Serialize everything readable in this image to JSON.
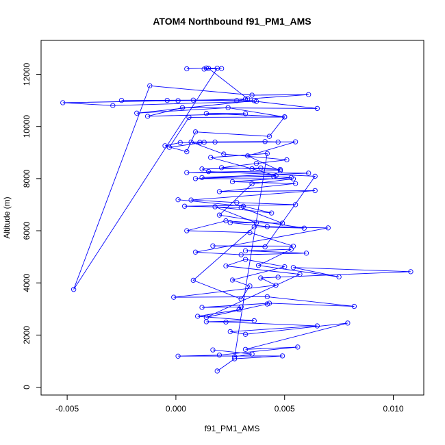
{
  "chart_data": {
    "type": "line",
    "title": "ATOM4 Northbound f91_PM1_AMS",
    "xlabel": "f91_PM1_AMS",
    "ylabel": "Altitude (m)",
    "xlim": [
      -0.0062,
      0.0114
    ],
    "ylim": [
      -300,
      13300
    ],
    "x_ticks": [
      -0.005,
      0.0,
      0.005,
      0.01
    ],
    "x_tick_labels": [
      "-0.005",
      "0.000",
      "0.005",
      "0.010"
    ],
    "y_ticks": [
      0,
      2000,
      4000,
      6000,
      8000,
      10000,
      12000
    ],
    "y_tick_labels": [
      "0",
      "2000",
      "4000",
      "6000",
      "8000",
      "10000",
      "12000"
    ],
    "series_color": "#0000ff",
    "series": [
      {
        "style": "both",
        "points": [
          [
            0.0019,
            620
          ],
          [
            0.0027,
            1090
          ],
          [
            0.0049,
            1200
          ],
          [
            0.0001,
            1190
          ],
          [
            0.002,
            1230
          ],
          [
            0.0056,
            1540
          ],
          [
            0.0032,
            1450
          ],
          [
            0.0079,
            2460
          ],
          [
            0.0032,
            2030
          ],
          [
            0.0025,
            2130
          ],
          [
            0.0065,
            2350
          ],
          [
            0.0023,
            2500
          ],
          [
            0.0014,
            2510
          ],
          [
            0.0036,
            2550
          ],
          [
            0.001,
            2720
          ],
          [
            0.0029,
            2970
          ],
          [
            0.003,
            3080
          ],
          [
            0.0012,
            3060
          ],
          [
            0.0043,
            3220
          ],
          [
            0.0082,
            3100
          ],
          [
            0.0042,
            3470
          ],
          [
            -0.0001,
            3450
          ],
          [
            0.0046,
            3910
          ],
          [
            0.0039,
            4190
          ],
          [
            0.0047,
            4220
          ],
          [
            0.0108,
            4430
          ],
          [
            0.0054,
            4590
          ],
          [
            0.0075,
            4230
          ],
          [
            0.0038,
            4670
          ],
          [
            0.0053,
            5290
          ],
          [
            0.0032,
            5230
          ],
          [
            0.006,
            5140
          ],
          [
            0.003,
            5080
          ],
          [
            0.0009,
            5180
          ],
          [
            0.007,
            6110
          ],
          [
            0.0042,
            6160
          ],
          [
            0.0025,
            6310
          ],
          [
            0.0049,
            6290
          ],
          [
            0.003,
            6890
          ],
          [
            0.0004,
            6940
          ],
          [
            0.0055,
            7000
          ],
          [
            0.0028,
            7080
          ],
          [
            0.0007,
            7180
          ],
          [
            0.0064,
            7540
          ],
          [
            0.002,
            7500
          ],
          [
            0.0055,
            7810
          ],
          [
            0.0026,
            7880
          ],
          [
            0.0053,
            8040
          ],
          [
            0.0045,
            8080
          ],
          [
            0.0012,
            8040
          ],
          [
            0.0061,
            8210
          ],
          [
            0.0005,
            8230
          ],
          [
            0.0048,
            8300
          ],
          [
            0.0033,
            8870
          ],
          [
            0.0055,
            9410
          ],
          [
            0.0018,
            9400
          ],
          [
            0.0011,
            9390
          ],
          [
            0.0002,
            9380
          ],
          [
            -0.0005,
            9260
          ],
          [
            0.0005,
            9030
          ],
          [
            0.0009,
            9790
          ],
          [
            0.0043,
            9620
          ],
          [
            0.005,
            10370
          ],
          [
            0.0014,
            10500
          ],
          [
            0.0032,
            10490
          ],
          [
            -0.0013,
            10390
          ],
          [
            0.0003,
            10720
          ],
          [
            0.0065,
            10690
          ],
          [
            0.0037,
            10960
          ],
          [
            -0.0029,
            10800
          ],
          [
            -0.0052,
            10910
          ],
          [
            0.0001,
            10990
          ],
          [
            0.0032,
            11050
          ],
          [
            0.0061,
            11220
          ],
          [
            0.0035,
            11200
          ],
          [
            -0.0012,
            11560
          ],
          [
            -0.0047,
            3750
          ],
          [
            0.0019,
            12230
          ],
          [
            0.0014,
            12240
          ],
          [
            0.0005,
            12210
          ]
        ]
      },
      {
        "style": "both",
        "points": [
          [
            0.0001,
            7190
          ],
          [
            0.0031,
            6940
          ],
          [
            0.0044,
            6680
          ],
          [
            0.0018,
            6920
          ],
          [
            0.0037,
            6300
          ],
          [
            0.0023,
            6380
          ],
          [
            0.0005,
            6000
          ],
          [
            0.0034,
            5930
          ],
          [
            0.0054,
            5410
          ],
          [
            0.0017,
            5420
          ],
          [
            0.0041,
            5380
          ],
          [
            0.0064,
            8090
          ],
          [
            0.0015,
            8270
          ],
          [
            0.0012,
            8370
          ],
          [
            0.0039,
            8410
          ],
          [
            0.0048,
            8350
          ],
          [
            0.0021,
            8420
          ],
          [
            0.0037,
            8580
          ],
          [
            0.0051,
            8720
          ],
          [
            0.0022,
            8940
          ],
          [
            0.0007,
            9400
          ],
          [
            0.0041,
            9420
          ],
          [
            0.0047,
            9400
          ],
          [
            0.0013,
            9390
          ],
          [
            -0.0003,
            9200
          ],
          [
            0.0006,
            10350
          ],
          [
            0.005,
            10360
          ],
          [
            0.0024,
            10720
          ],
          [
            -0.0018,
            10510
          ],
          [
            0.0036,
            10990
          ],
          [
            0.0008,
            11010
          ],
          [
            -0.0025,
            11000
          ],
          [
            -0.0004,
            11000
          ],
          [
            0.0028,
            10990
          ],
          [
            0.0033,
            11060
          ],
          [
            0.0015,
            12230
          ],
          [
            0.0021,
            12220
          ],
          [
            0.0013,
            12200
          ]
        ]
      },
      {
        "style": "both",
        "points": [
          [
            0.0042,
            3190
          ],
          [
            0.0014,
            2680
          ],
          [
            0.0057,
            4330
          ],
          [
            0.0023,
            4650
          ],
          [
            0.0032,
            4900
          ],
          [
            0.005,
            4620
          ],
          [
            0.0026,
            4110
          ],
          [
            0.0034,
            3880
          ],
          [
            0.003,
            3380
          ],
          [
            0.0008,
            4100
          ],
          [
            0.0036,
            6150
          ],
          [
            0.0059,
            6100
          ],
          [
            0.002,
            6600
          ],
          [
            0.0035,
            7800
          ],
          [
            0.0054,
            7990
          ],
          [
            0.0009,
            8000
          ],
          [
            0.0046,
            8110
          ],
          [
            0.0035,
            8380
          ],
          [
            0.0016,
            8810
          ],
          [
            0.0042,
            8960
          ],
          [
            0.0027,
            1170
          ],
          [
            0.0035,
            1270
          ],
          [
            0.0017,
            1430
          ]
        ]
      }
    ]
  }
}
